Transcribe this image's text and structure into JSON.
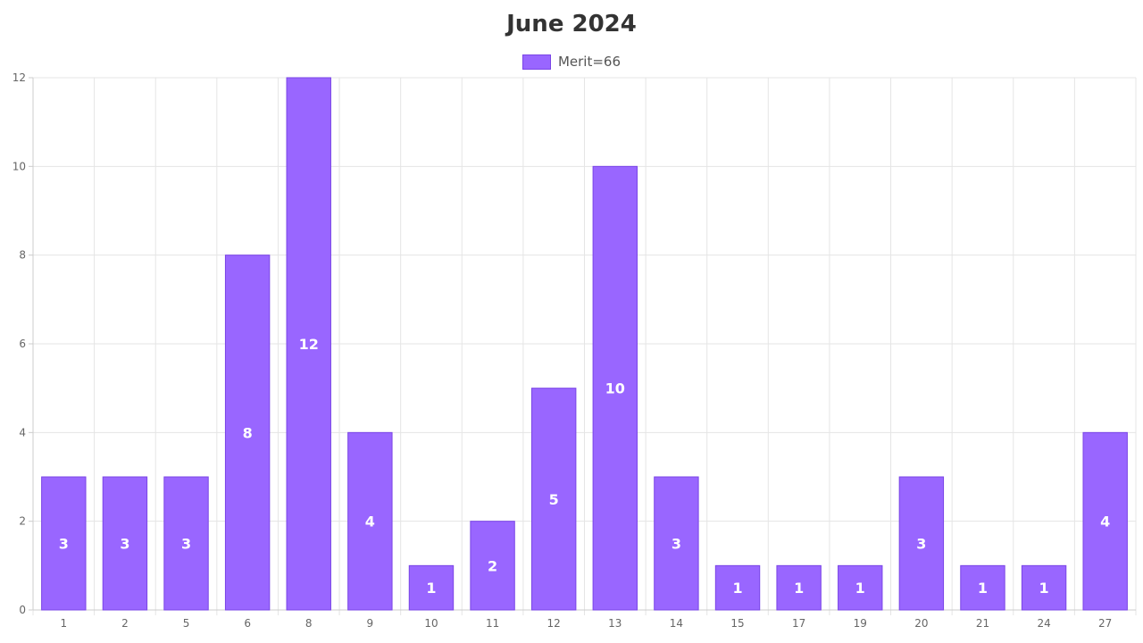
{
  "chart_data": {
    "type": "bar",
    "title": "June 2024",
    "categories": [
      "1",
      "2",
      "5",
      "6",
      "8",
      "9",
      "10",
      "11",
      "12",
      "13",
      "14",
      "15",
      "17",
      "19",
      "20",
      "21",
      "24",
      "27"
    ],
    "series": [
      {
        "name": "Merit=66",
        "values": [
          3,
          3,
          3,
          8,
          12,
          4,
          1,
          2,
          5,
          10,
          3,
          1,
          1,
          1,
          3,
          1,
          1,
          4
        ]
      }
    ],
    "yticks": [
      "0",
      "2",
      "4",
      "6",
      "8",
      "10",
      "12"
    ],
    "ylim": [
      0,
      12
    ],
    "xlabel": "",
    "ylabel": "",
    "grid": true,
    "legend": "top-center",
    "bar_color": "#9966ff",
    "bar_border_color": "#7a45e6",
    "label_color": "#ffffff"
  }
}
